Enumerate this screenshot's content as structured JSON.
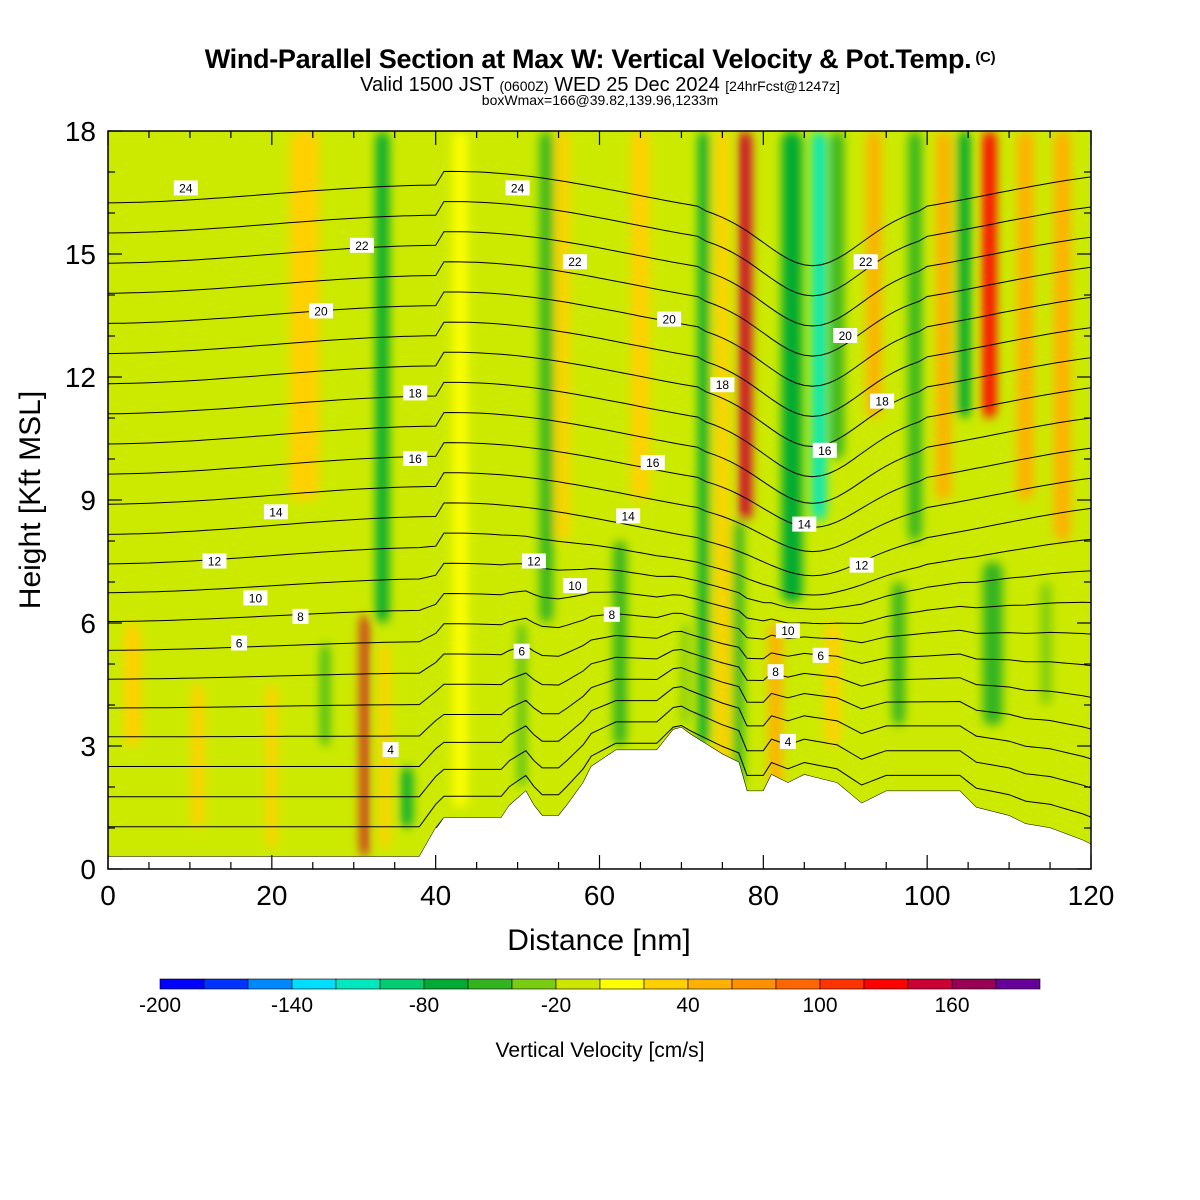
{
  "title": "Wind-Parallel Section at Max W: Vertical Velocity & Pot.Temp.",
  "title_mark": "(C)",
  "subtitle": {
    "main": "Valid 1500 JST",
    "utc": "(0600Z)",
    "date": "WED 25 Dec 2024",
    "forecast": "[24hrFcst@1247z]"
  },
  "subtitle2": "boxWmax=166@39.82,139.96,1233m",
  "chart_data": {
    "type": "heatmap",
    "xlabel": "Distance [nm]",
    "ylabel": "Height [Kft MSL]",
    "xlim": [
      0,
      120
    ],
    "ylim": [
      0,
      18
    ],
    "x_ticks": [
      0,
      20,
      40,
      60,
      80,
      100,
      120
    ],
    "y_ticks": [
      0,
      3,
      6,
      9,
      12,
      15,
      18
    ],
    "terrain": {
      "x": [
        0,
        38,
        40,
        40.2,
        41,
        48,
        49,
        51,
        52,
        53,
        55,
        56,
        58,
        59,
        62,
        67,
        68,
        69,
        70,
        71,
        73,
        75,
        77,
        78,
        80,
        81,
        83,
        85,
        89,
        92,
        95,
        104,
        106,
        110,
        112,
        115,
        119,
        120
      ],
      "height": [
        0.3,
        0.3,
        1.0,
        1.0,
        1.25,
        1.25,
        1.55,
        1.9,
        1.55,
        1.3,
        1.3,
        1.55,
        2.1,
        2.5,
        2.9,
        2.9,
        3.15,
        3.4,
        3.45,
        3.3,
        3.05,
        2.8,
        2.6,
        1.9,
        1.9,
        2.3,
        2.1,
        2.3,
        2.1,
        1.6,
        1.9,
        1.9,
        1.5,
        1.3,
        1.1,
        1.0,
        0.7,
        0.6
      ]
    },
    "vertical_velocity_cells": [
      {
        "x": 31.3,
        "y0": 0.3,
        "y1": 6.2,
        "w": 0.9,
        "value": 150
      },
      {
        "x": 33.5,
        "y0": 6.0,
        "y1": 18,
        "w": 1.6,
        "value": -65
      },
      {
        "x": 33.8,
        "y0": 0.5,
        "y1": 5.5,
        "w": 1.3,
        "value": 20
      },
      {
        "x": 26.5,
        "y0": 3.0,
        "y1": 5.5,
        "w": 1.0,
        "value": -60
      },
      {
        "x": 36.5,
        "y0": 1.0,
        "y1": 2.5,
        "w": 1.4,
        "value": -70
      },
      {
        "x": 43.0,
        "y0": 1.5,
        "y1": 18,
        "w": 1.8,
        "value": 15
      },
      {
        "x": 50.5,
        "y0": 2.0,
        "y1": 6.0,
        "w": 0.8,
        "value": -45
      },
      {
        "x": 53.5,
        "y0": 6.0,
        "y1": 18,
        "w": 1.6,
        "value": -50
      },
      {
        "x": 55.5,
        "y0": 8.0,
        "y1": 18,
        "w": 1.6,
        "value": 20
      },
      {
        "x": 62.5,
        "y0": 3.0,
        "y1": 8.0,
        "w": 1.6,
        "value": -45
      },
      {
        "x": 65.0,
        "y0": 9.0,
        "y1": 18,
        "w": 2.2,
        "value": 20
      },
      {
        "x": 72.7,
        "y0": 3.0,
        "y1": 18,
        "w": 1.3,
        "value": -65
      },
      {
        "x": 70.5,
        "y0": 3.5,
        "y1": 6.0,
        "w": 1.0,
        "value": -40
      },
      {
        "x": 75.0,
        "y0": 1.5,
        "y1": 18,
        "w": 1.6,
        "value": 20
      },
      {
        "x": 77.8,
        "y0": 8.5,
        "y1": 18,
        "w": 1.5,
        "value": 140
      },
      {
        "x": 77.0,
        "y0": 2.0,
        "y1": 8.5,
        "w": 1.2,
        "value": -60
      },
      {
        "x": 81.5,
        "y0": 2.0,
        "y1": 6.0,
        "w": 1.6,
        "value": 40
      },
      {
        "x": 83.5,
        "y0": 6.5,
        "y1": 18,
        "w": 2.5,
        "value": -80
      },
      {
        "x": 86.8,
        "y0": 8.5,
        "y1": 18,
        "w": 1.7,
        "value": -120
      },
      {
        "x": 89.0,
        "y0": 10.0,
        "y1": 18,
        "w": 1.6,
        "value": -60
      },
      {
        "x": 88.5,
        "y0": 3.0,
        "y1": 6.0,
        "w": 1.8,
        "value": 30
      },
      {
        "x": 93.5,
        "y0": 11.0,
        "y1": 18,
        "w": 1.8,
        "value": 50
      },
      {
        "x": 96.5,
        "y0": 3.5,
        "y1": 7.0,
        "w": 1.5,
        "value": -60
      },
      {
        "x": 98.5,
        "y0": 8.0,
        "y1": 18,
        "w": 1.6,
        "value": -55
      },
      {
        "x": 102.0,
        "y0": 9.0,
        "y1": 18,
        "w": 1.8,
        "value": 50
      },
      {
        "x": 104.5,
        "y0": 11.0,
        "y1": 18,
        "w": 1.6,
        "value": -65
      },
      {
        "x": 107.6,
        "y0": 11.0,
        "y1": 18,
        "w": 1.6,
        "value": 130
      },
      {
        "x": 108.0,
        "y0": 3.5,
        "y1": 7.5,
        "w": 2.4,
        "value": -55
      },
      {
        "x": 112.0,
        "y0": 9.0,
        "y1": 18,
        "w": 2.0,
        "value": 50
      },
      {
        "x": 114.5,
        "y0": 4.0,
        "y1": 7.0,
        "w": 1.3,
        "value": -40
      },
      {
        "x": 116.5,
        "y0": 8.0,
        "y1": 18,
        "w": 2.0,
        "value": 40
      },
      {
        "x": 3.0,
        "y0": 3.0,
        "y1": 6.0,
        "w": 2.0,
        "value": 30
      },
      {
        "x": 11.0,
        "y0": 1.0,
        "y1": 4.5,
        "w": 1.5,
        "value": 30
      },
      {
        "x": 20.0,
        "y0": 0.5,
        "y1": 4.5,
        "w": 1.3,
        "value": 20
      },
      {
        "x": 24.0,
        "y0": 9.0,
        "y1": 18,
        "w": 3.5,
        "value": 20
      }
    ],
    "potential_temperature": {
      "levels": [
        3,
        4,
        5,
        6,
        7,
        8,
        9,
        10,
        11,
        12,
        13,
        14,
        15,
        16,
        17,
        18,
        19,
        20,
        21,
        22,
        23,
        24,
        25
      ],
      "label_positions": [
        {
          "label": "24",
          "x": 9.5,
          "y": 16.6
        },
        {
          "label": "22",
          "x": 31.0,
          "y": 15.2
        },
        {
          "label": "20",
          "x": 26.0,
          "y": 13.6
        },
        {
          "label": "18",
          "x": 37.5,
          "y": 11.6
        },
        {
          "label": "16",
          "x": 37.5,
          "y": 10.0
        },
        {
          "label": "14",
          "x": 20.5,
          "y": 8.7
        },
        {
          "label": "12",
          "x": 13.0,
          "y": 7.5
        },
        {
          "label": "10",
          "x": 18.0,
          "y": 6.6
        },
        {
          "label": "8",
          "x": 23.5,
          "y": 6.15
        },
        {
          "label": "6",
          "x": 16.0,
          "y": 5.5
        },
        {
          "label": "4",
          "x": 34.5,
          "y": 2.9
        },
        {
          "label": "24",
          "x": 50.0,
          "y": 16.6
        },
        {
          "label": "22",
          "x": 57.0,
          "y": 14.8
        },
        {
          "label": "20",
          "x": 68.5,
          "y": 13.4
        },
        {
          "label": "18",
          "x": 75.0,
          "y": 11.8
        },
        {
          "label": "16",
          "x": 66.5,
          "y": 9.9
        },
        {
          "label": "14",
          "x": 63.5,
          "y": 8.6
        },
        {
          "label": "12",
          "x": 52.0,
          "y": 7.5
        },
        {
          "label": "10",
          "x": 57.0,
          "y": 6.9
        },
        {
          "label": "8",
          "x": 61.5,
          "y": 6.2
        },
        {
          "label": "6",
          "x": 50.5,
          "y": 5.3
        },
        {
          "label": "22",
          "x": 92.5,
          "y": 14.8
        },
        {
          "label": "20",
          "x": 90.0,
          "y": 13.0
        },
        {
          "label": "18",
          "x": 94.5,
          "y": 11.4
        },
        {
          "label": "16",
          "x": 87.5,
          "y": 10.2
        },
        {
          "label": "14",
          "x": 85.0,
          "y": 8.4
        },
        {
          "label": "12",
          "x": 92.0,
          "y": 7.4
        },
        {
          "label": "10",
          "x": 83.0,
          "y": 5.8
        },
        {
          "label": "8",
          "x": 81.5,
          "y": 4.8
        },
        {
          "label": "6",
          "x": 87.0,
          "y": 5.2
        },
        {
          "label": "4",
          "x": 83.0,
          "y": 3.1
        }
      ]
    },
    "colorbar": {
      "label": "Vertical Velocity [cm/s]",
      "tick_labels": [
        "-200",
        "-140",
        "-80",
        "-20",
        "40",
        "100",
        "160"
      ],
      "tick_values": [
        -200,
        -140,
        -80,
        -20,
        40,
        100,
        160
      ],
      "min": -200,
      "max": 200,
      "step": 20,
      "colors": [
        "#0000ff",
        "#0033ff",
        "#0088ff",
        "#00ddff",
        "#00e8c0",
        "#00cc70",
        "#00aa33",
        "#33b320",
        "#7acc10",
        "#cce600",
        "#ffff00",
        "#ffd000",
        "#ffb000",
        "#ff9000",
        "#ff6600",
        "#ff3300",
        "#ff0000",
        "#cc0033",
        "#990055",
        "#660099"
      ]
    }
  }
}
